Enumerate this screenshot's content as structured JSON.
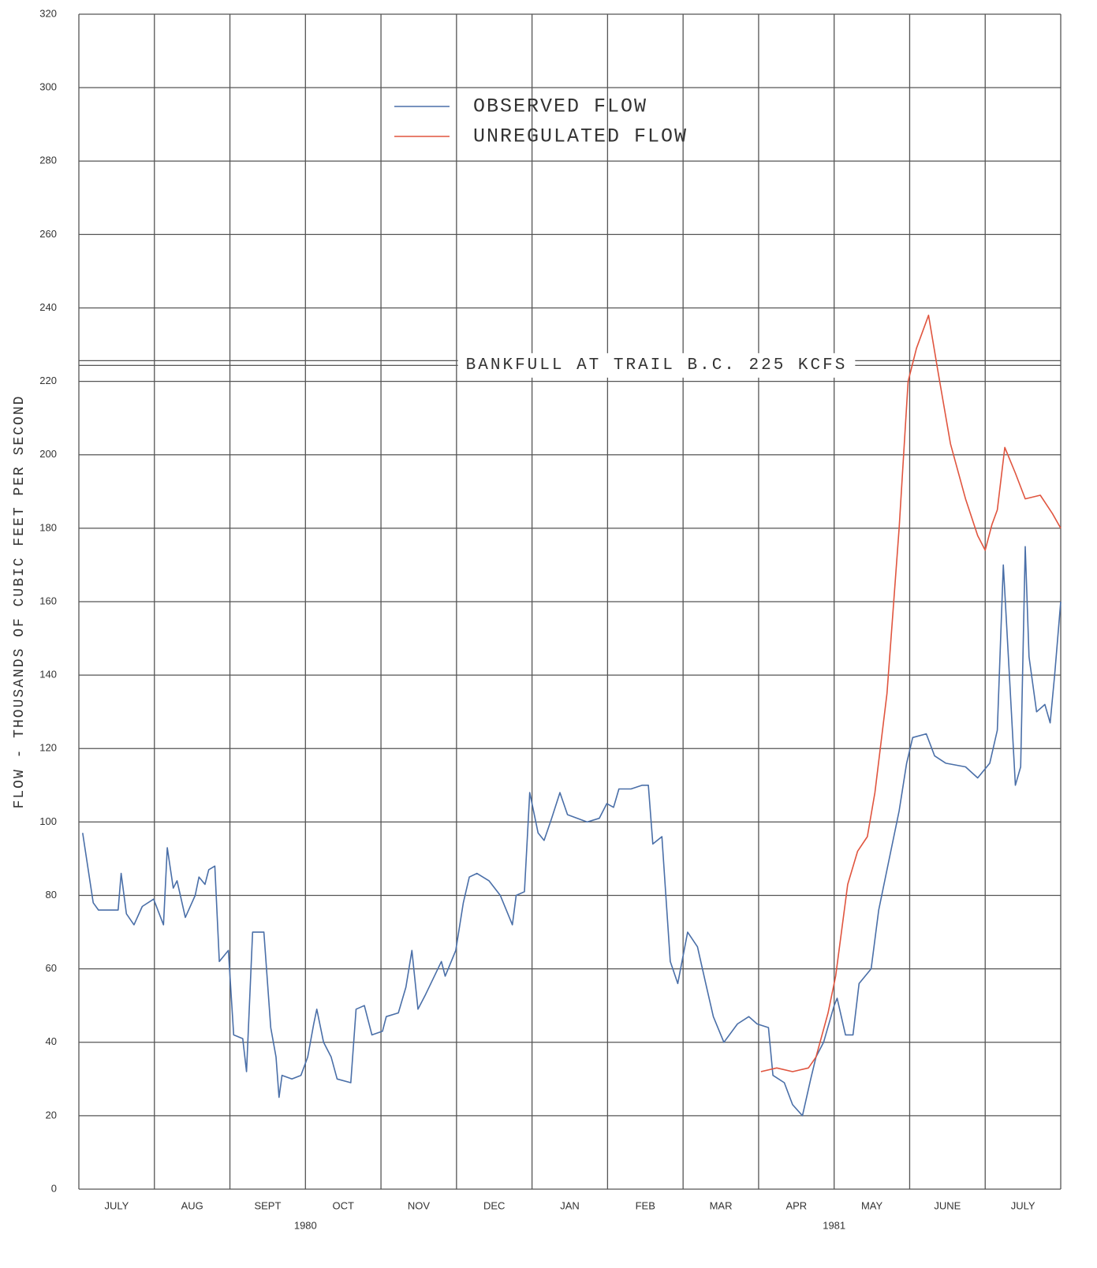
{
  "chart_data": {
    "type": "line",
    "y_label": "FLOW - THOUSANDS OF CUBIC FEET PER SECOND",
    "ylim": [
      0,
      320
    ],
    "yticks": [
      0,
      20,
      40,
      60,
      80,
      100,
      120,
      140,
      160,
      180,
      200,
      220,
      240,
      260,
      280,
      300,
      320
    ],
    "xlim": [
      0,
      13
    ],
    "xgrid": [
      0,
      1,
      2,
      3,
      4,
      5,
      6,
      7,
      8,
      9,
      10,
      11,
      12,
      13
    ],
    "xticks": [
      {
        "value": 0.5,
        "label": "JULY"
      },
      {
        "value": 1.5,
        "label": "AUG"
      },
      {
        "value": 2.5,
        "label": "SEPT"
      },
      {
        "value": 3.5,
        "label": "OCT"
      },
      {
        "value": 4.5,
        "label": "NOV"
      },
      {
        "value": 5.5,
        "label": "DEC"
      },
      {
        "value": 6.5,
        "label": "JAN"
      },
      {
        "value": 7.5,
        "label": "FEB"
      },
      {
        "value": 8.5,
        "label": "MAR"
      },
      {
        "value": 9.5,
        "label": "APR"
      },
      {
        "value": 10.5,
        "label": "MAY"
      },
      {
        "value": 11.5,
        "label": "JUNE"
      },
      {
        "value": 12.5,
        "label": "JULY"
      }
    ],
    "x_year_labels": [
      {
        "value": 3,
        "label": "1980"
      },
      {
        "value": 10,
        "label": "1981"
      }
    ],
    "grid": true,
    "legend": "top-center",
    "reference_line": {
      "value": 225,
      "label": "BANKFULL AT TRAIL B.C. 225 KCFS"
    },
    "series": [
      {
        "name": "OBSERVED FLOW",
        "color": "#4a6fa8",
        "x": [
          0.05,
          0.19,
          0.26,
          0.52,
          0.56,
          0.63,
          0.73,
          0.84,
          0.99,
          1.12,
          1.17,
          1.25,
          1.3,
          1.41,
          1.54,
          1.59,
          1.67,
          1.72,
          1.8,
          1.86,
          1.98,
          2.05,
          2.17,
          2.22,
          2.3,
          2.45,
          2.54,
          2.61,
          2.65,
          2.69,
          2.82,
          2.94,
          3.03,
          3.11,
          3.15,
          3.24,
          3.34,
          3.42,
          3.6,
          3.67,
          3.78,
          3.88,
          4.02,
          4.07,
          4.23,
          4.33,
          4.41,
          4.49,
          4.59,
          4.8,
          4.85,
          4.99,
          5.09,
          5.17,
          5.27,
          5.43,
          5.58,
          5.74,
          5.79,
          5.9,
          5.97,
          6.08,
          6.16,
          6.26,
          6.37,
          6.47,
          6.73,
          6.89,
          6.99,
          7.08,
          7.15,
          7.31,
          7.46,
          7.54,
          7.6,
          7.72,
          7.83,
          7.93,
          8.06,
          8.19,
          8.3,
          8.4,
          8.54,
          8.72,
          8.87,
          8.98,
          9.13,
          9.19,
          9.34,
          9.45,
          9.58,
          9.69,
          9.76,
          9.86,
          10.0,
          10.04,
          10.15,
          10.25,
          10.33,
          10.49,
          10.59,
          10.73,
          10.86,
          10.96,
          11.04,
          11.22,
          11.33,
          11.48,
          11.74,
          11.9,
          12.06,
          12.16,
          12.24,
          12.32,
          12.4,
          12.47,
          12.53,
          12.58,
          12.68,
          12.79,
          12.86,
          12.92,
          13.0
        ],
        "values": [
          97,
          78,
          76,
          76,
          86,
          75,
          72,
          77,
          79,
          72,
          93,
          82,
          84,
          74,
          80,
          85,
          83,
          87,
          88,
          62,
          65,
          42,
          41,
          32,
          70,
          70,
          44,
          36,
          25,
          31,
          30,
          31,
          36,
          45,
          49,
          40,
          36,
          30,
          29,
          49,
          50,
          42,
          43,
          47,
          48,
          55,
          65,
          49,
          53,
          62,
          58,
          65,
          78,
          85,
          86,
          84,
          80,
          72,
          80,
          81,
          108,
          97,
          95,
          101,
          108,
          102,
          100,
          101,
          105,
          104,
          109,
          109,
          110,
          110,
          94,
          96,
          62,
          56,
          70,
          66,
          56,
          47,
          40,
          45,
          47,
          45,
          44,
          31,
          29,
          23,
          20,
          30,
          36,
          40,
          50,
          52,
          42,
          42,
          56,
          60,
          76,
          90,
          103,
          116,
          123,
          124,
          118,
          116,
          115,
          112,
          116,
          125,
          170,
          140,
          110,
          115,
          175,
          145,
          130,
          132,
          127,
          140,
          160
        ]
      },
      {
        "name": "UNREGULATED FLOW",
        "color": "#e0553f",
        "x": [
          9.03,
          9.24,
          9.45,
          9.66,
          9.76,
          9.92,
          10.02,
          10.18,
          10.31,
          10.44,
          10.54,
          10.7,
          10.86,
          10.98,
          11.09,
          11.25,
          11.38,
          11.54,
          11.74,
          11.9,
          12.0,
          12.09,
          12.16,
          12.26,
          12.4,
          12.53,
          12.73,
          12.89,
          13.0
        ],
        "values": [
          32,
          33,
          32,
          33,
          36,
          48,
          58,
          83,
          92,
          96,
          108,
          135,
          180,
          220,
          229,
          238,
          222,
          203,
          188,
          178,
          174,
          181,
          185,
          202,
          195,
          188,
          189,
          184,
          180
        ]
      }
    ]
  }
}
